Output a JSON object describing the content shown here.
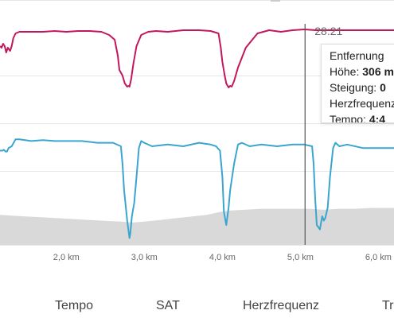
{
  "cursor": {
    "time": "28:21",
    "distance_km": 5.06
  },
  "tooltip": {
    "distance_label": "Entfernung",
    "height_label": "Höhe:",
    "height_value": "306 m",
    "slope_label": "Steigung:",
    "slope_value": "0",
    "heartrate_label": "Herzfrequenz",
    "pace_label": "Tempo:",
    "pace_value": "4:4"
  },
  "legend": {
    "tempo": "Tempo",
    "sat": "SAT",
    "heartrate": "Herzfrequenz",
    "tr": "Tr"
  },
  "chart_data": {
    "type": "line",
    "x_unit": "km",
    "xlim": [
      1.15,
      6.2
    ],
    "x_ticks": [
      "2,0 km",
      "3,0 km",
      "4,0 km",
      "5,0 km",
      "6,0 km"
    ],
    "x_tick_values": [
      2.0,
      3.0,
      4.0,
      5.0,
      6.0
    ],
    "grid": true,
    "series": [
      {
        "name": "Herzfrequenz",
        "color": "#c2185b",
        "x": [
          1.15,
          1.17,
          1.19,
          1.21,
          1.23,
          1.25,
          1.28,
          1.3,
          1.32,
          1.35,
          1.4,
          1.55,
          1.7,
          1.85,
          2.0,
          2.15,
          2.3,
          2.45,
          2.55,
          2.62,
          2.66,
          2.68,
          2.72,
          2.75,
          2.78,
          2.8,
          2.81,
          2.83,
          2.86,
          2.9,
          2.96,
          3.05,
          3.15,
          3.3,
          3.5,
          3.7,
          3.85,
          3.95,
          3.98,
          4.0,
          4.03,
          4.05,
          4.08,
          4.1,
          4.12,
          4.15,
          4.2,
          4.3,
          4.45,
          4.6,
          4.75,
          4.9,
          5.05,
          5.2,
          5.5,
          5.8,
          6.1,
          6.2
        ],
        "y": [
          0.72,
          0.7,
          0.75,
          0.72,
          0.64,
          0.7,
          0.66,
          0.72,
          0.82,
          0.88,
          0.9,
          0.9,
          0.9,
          0.91,
          0.9,
          0.91,
          0.91,
          0.9,
          0.86,
          0.8,
          0.6,
          0.42,
          0.35,
          0.25,
          0.21,
          0.22,
          0.21,
          0.3,
          0.5,
          0.72,
          0.86,
          0.9,
          0.91,
          0.9,
          0.92,
          0.92,
          0.91,
          0.88,
          0.7,
          0.52,
          0.35,
          0.25,
          0.2,
          0.22,
          0.21,
          0.28,
          0.45,
          0.7,
          0.88,
          0.92,
          0.9,
          0.92,
          0.93,
          0.92,
          0.92,
          0.92,
          0.92,
          0.92
        ]
      },
      {
        "name": "Tempo",
        "color": "#3aa6d0",
        "x": [
          1.15,
          1.18,
          1.2,
          1.22,
          1.24,
          1.26,
          1.3,
          1.35,
          1.4,
          1.55,
          1.7,
          1.85,
          2.0,
          2.2,
          2.4,
          2.6,
          2.7,
          2.72,
          2.74,
          2.78,
          2.81,
          2.82,
          2.84,
          2.87,
          2.9,
          2.93,
          2.96,
          3.0,
          3.1,
          3.3,
          3.5,
          3.7,
          3.85,
          3.92,
          3.97,
          4.0,
          4.02,
          4.05,
          4.08,
          4.1,
          4.15,
          4.2,
          4.25,
          4.35,
          4.5,
          4.7,
          4.9,
          5.05,
          5.15,
          5.17,
          5.19,
          5.21,
          5.25,
          5.28,
          5.3,
          5.32,
          5.35,
          5.38,
          5.42,
          5.45,
          5.5,
          5.6,
          5.8,
          6.0,
          6.2
        ],
        "y": [
          0.55,
          0.55,
          0.56,
          0.54,
          0.54,
          0.58,
          0.6,
          0.68,
          0.68,
          0.66,
          0.67,
          0.66,
          0.66,
          0.66,
          0.64,
          0.64,
          0.6,
          0.4,
          0.1,
          -0.25,
          -0.45,
          -0.4,
          -0.2,
          -0.05,
          0.25,
          0.58,
          0.66,
          0.64,
          0.6,
          0.62,
          0.6,
          0.64,
          0.62,
          0.6,
          0.55,
          0.25,
          -0.15,
          -0.3,
          -0.1,
          0.1,
          0.4,
          0.62,
          0.64,
          0.6,
          0.62,
          0.6,
          0.62,
          0.62,
          0.6,
          0.4,
          0.0,
          -0.3,
          -0.35,
          -0.2,
          -0.25,
          -0.22,
          -0.1,
          0.25,
          0.58,
          0.64,
          0.6,
          0.62,
          0.58,
          0.58,
          0.58
        ]
      },
      {
        "name": "Höhe",
        "color": "#d9d9d9",
        "x": [
          1.15,
          1.3,
          1.5,
          1.7,
          1.9,
          2.1,
          2.3,
          2.5,
          2.7,
          2.85,
          3.0,
          3.2,
          3.4,
          3.6,
          3.8,
          3.95,
          4.1,
          4.3,
          4.5,
          4.7,
          4.9,
          5.1,
          5.3,
          5.5,
          5.7,
          5.9,
          6.2
        ],
        "y": [
          0.35,
          0.34,
          0.33,
          0.32,
          0.31,
          0.3,
          0.29,
          0.28,
          0.27,
          0.26,
          0.27,
          0.29,
          0.31,
          0.33,
          0.35,
          0.38,
          0.4,
          0.41,
          0.42,
          0.42,
          0.42,
          0.42,
          0.41,
          0.42,
          0.42,
          0.43,
          0.43
        ]
      }
    ]
  }
}
